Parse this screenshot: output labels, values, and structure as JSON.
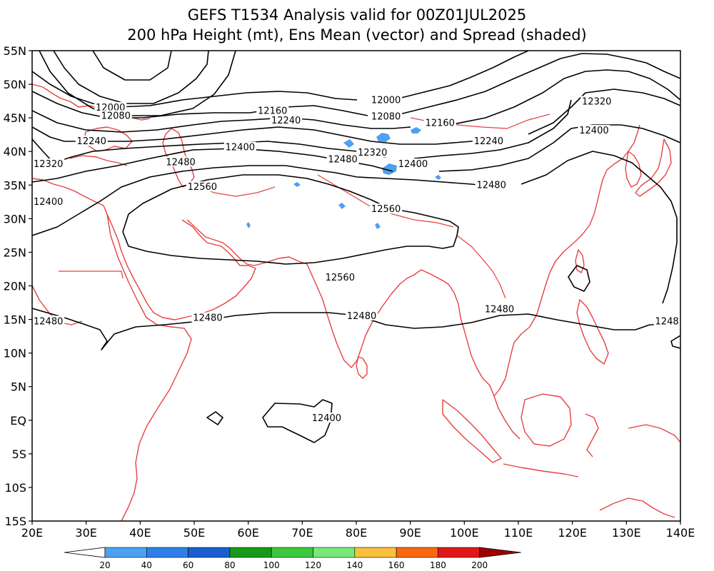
{
  "title": {
    "line1": "GEFS T1534 Analysis valid for 00Z01JUL2025",
    "line2": "200 hPa Height (mt), Ens Mean (vector) and Spread (shaded)"
  },
  "colors": {
    "coastline": "#e84040",
    "contour": "#000000",
    "spread_patch": "#4ea0f0",
    "colorbar": [
      "#ffffff",
      "#4ea0f0",
      "#2e80e8",
      "#1a5fd0",
      "#189a18",
      "#3cc83c",
      "#78e878",
      "#f8c03c",
      "#f86810",
      "#e01818",
      "#a00000"
    ]
  },
  "chart_data": {
    "type": "map",
    "projection": "lat-lon",
    "xlim": [
      20,
      140
    ],
    "ylim": [
      -15,
      55
    ],
    "x_ticks": [
      "20E",
      "30E",
      "40E",
      "50E",
      "60E",
      "70E",
      "80E",
      "90E",
      "100E",
      "110E",
      "120E",
      "130E",
      "140E"
    ],
    "y_ticks": [
      "55N",
      "50N",
      "45N",
      "40N",
      "35N",
      "30N",
      "25N",
      "20N",
      "15N",
      "10N",
      "5N",
      "EQ",
      "5S",
      "10S",
      "15S"
    ],
    "contour_levels": [
      12000,
      12080,
      12160,
      12240,
      12320,
      12400,
      12480,
      12560
    ],
    "contour_labels": [
      {
        "text": "12000",
        "lon": 34.5,
        "lat": 46.5
      },
      {
        "text": "12080",
        "lon": 35.5,
        "lat": 45.3
      },
      {
        "text": "12160",
        "lon": 64.5,
        "lat": 46.0
      },
      {
        "text": "12240",
        "lon": 67.0,
        "lat": 44.6
      },
      {
        "text": "12240",
        "lon": 31.0,
        "lat": 41.5
      },
      {
        "text": "12400",
        "lon": 58.5,
        "lat": 40.6
      },
      {
        "text": "12320",
        "lon": 23.0,
        "lat": 38.1
      },
      {
        "text": "12480",
        "lon": 47.5,
        "lat": 38.4
      },
      {
        "text": "12400",
        "lon": 23.0,
        "lat": 32.5
      },
      {
        "text": "12560",
        "lon": 51.5,
        "lat": 34.7
      },
      {
        "text": "12480",
        "lon": 77.5,
        "lat": 38.8
      },
      {
        "text": "12000",
        "lon": 85.5,
        "lat": 47.6
      },
      {
        "text": "12080",
        "lon": 85.5,
        "lat": 45.2
      },
      {
        "text": "12160",
        "lon": 95.5,
        "lat": 44.2
      },
      {
        "text": "12320",
        "lon": 83.0,
        "lat": 39.8
      },
      {
        "text": "12400",
        "lon": 90.5,
        "lat": 38.1
      },
      {
        "text": "12560",
        "lon": 85.5,
        "lat": 31.4
      },
      {
        "text": "12560",
        "lon": 77.0,
        "lat": 21.2
      },
      {
        "text": "12240",
        "lon": 104.5,
        "lat": 41.5
      },
      {
        "text": "12480",
        "lon": 105.0,
        "lat": 35.0
      },
      {
        "text": "12320",
        "lon": 124.5,
        "lat": 47.4
      },
      {
        "text": "12400",
        "lon": 124.0,
        "lat": 43.1
      },
      {
        "text": "12480",
        "lon": 23.0,
        "lat": 14.7
      },
      {
        "text": "12480",
        "lon": 52.5,
        "lat": 15.2
      },
      {
        "text": "12480",
        "lon": 81.0,
        "lat": 15.5
      },
      {
        "text": "12480",
        "lon": 106.5,
        "lat": 16.5
      },
      {
        "text": "1248",
        "lon": 137.5,
        "lat": 14.7
      },
      {
        "text": "12400",
        "lon": 74.5,
        "lat": 0.3
      }
    ],
    "colorbar": {
      "ticks": [
        "20",
        "40",
        "60",
        "80",
        "100",
        "120",
        "140",
        "160",
        "180",
        "200"
      ]
    }
  }
}
